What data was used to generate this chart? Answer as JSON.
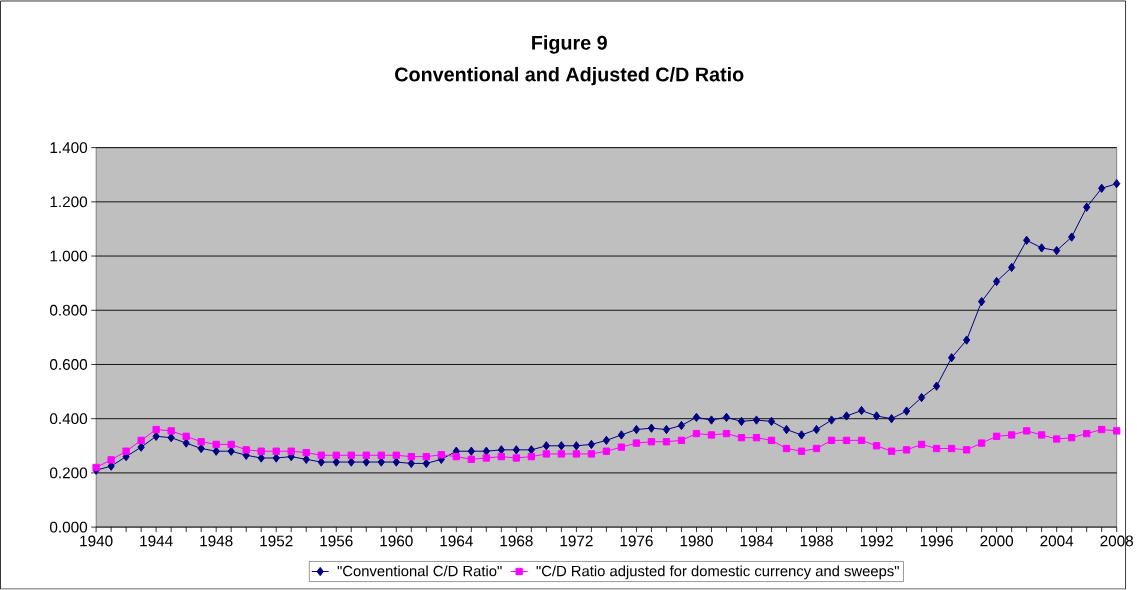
{
  "chart_data": {
    "type": "line",
    "title": "Figure 9",
    "subtitle": "Conventional and Adjusted C/D Ratio",
    "x": [
      1940,
      1941,
      1942,
      1943,
      1944,
      1945,
      1946,
      1947,
      1948,
      1949,
      1950,
      1951,
      1952,
      1953,
      1954,
      1955,
      1956,
      1957,
      1958,
      1959,
      1960,
      1961,
      1962,
      1963,
      1964,
      1965,
      1966,
      1967,
      1968,
      1969,
      1970,
      1971,
      1972,
      1973,
      1974,
      1975,
      1976,
      1977,
      1978,
      1979,
      1980,
      1981,
      1982,
      1983,
      1984,
      1985,
      1986,
      1987,
      1988,
      1989,
      1990,
      1991,
      1992,
      1993,
      1994,
      1995,
      1996,
      1997,
      1998,
      1999,
      2000,
      2001,
      2002,
      2003,
      2004,
      2005,
      2006,
      2007,
      2008
    ],
    "series": [
      {
        "name": "\"Conventional C/D Ratio\"",
        "color": "#000080",
        "marker": "diamond",
        "values": [
          0.21,
          0.225,
          0.26,
          0.295,
          0.335,
          0.33,
          0.31,
          0.29,
          0.28,
          0.28,
          0.265,
          0.255,
          0.255,
          0.26,
          0.25,
          0.24,
          0.24,
          0.24,
          0.24,
          0.24,
          0.24,
          0.235,
          0.235,
          0.25,
          0.28,
          0.28,
          0.28,
          0.285,
          0.285,
          0.285,
          0.3,
          0.3,
          0.3,
          0.305,
          0.32,
          0.34,
          0.36,
          0.365,
          0.36,
          0.375,
          0.405,
          0.395,
          0.405,
          0.39,
          0.395,
          0.39,
          0.36,
          0.34,
          0.36,
          0.395,
          0.41,
          0.43,
          0.41,
          0.4,
          0.428,
          0.478,
          0.52,
          0.625,
          0.69,
          0.832,
          0.906,
          0.958,
          1.058,
          1.03,
          1.02,
          1.07,
          1.18,
          1.25,
          1.267
        ]
      },
      {
        "name": "\"C/D Ratio adjusted for domestic currency and sweeps\"",
        "color": "#ff00ff",
        "marker": "square",
        "values": [
          0.22,
          0.248,
          0.28,
          0.32,
          0.36,
          0.355,
          0.335,
          0.315,
          0.305,
          0.305,
          0.285,
          0.28,
          0.28,
          0.28,
          0.275,
          0.265,
          0.265,
          0.265,
          0.265,
          0.265,
          0.265,
          0.26,
          0.26,
          0.267,
          0.26,
          0.25,
          0.255,
          0.26,
          0.255,
          0.26,
          0.27,
          0.27,
          0.27,
          0.27,
          0.28,
          0.295,
          0.31,
          0.315,
          0.315,
          0.32,
          0.345,
          0.34,
          0.345,
          0.33,
          0.33,
          0.32,
          0.29,
          0.28,
          0.29,
          0.32,
          0.32,
          0.32,
          0.3,
          0.28,
          0.285,
          0.305,
          0.29,
          0.29,
          0.285,
          0.31,
          0.335,
          0.34,
          0.355,
          0.34,
          0.325,
          0.33,
          0.345,
          0.36,
          0.355
        ]
      }
    ],
    "xlim": [
      1940,
      2008
    ],
    "xticks": [
      1940,
      {
        "value": 1941,
        "label": null
      },
      {
        "value": 1942,
        "label": null
      },
      {
        "value": 1943,
        "label": null
      },
      1944,
      {
        "value": 1945,
        "label": null
      },
      {
        "value": 1946,
        "label": null
      },
      {
        "value": 1947,
        "label": null
      },
      1948,
      {
        "value": 1949,
        "label": null
      },
      {
        "value": 1950,
        "label": null
      },
      {
        "value": 1951,
        "label": null
      },
      1952,
      {
        "value": 1953,
        "label": null
      },
      {
        "value": 1954,
        "label": null
      },
      {
        "value": 1955,
        "label": null
      },
      1956,
      {
        "value": 1957,
        "label": null
      },
      {
        "value": 1958,
        "label": null
      },
      {
        "value": 1959,
        "label": null
      },
      1960,
      {
        "value": 1961,
        "label": null
      },
      {
        "value": 1962,
        "label": null
      },
      {
        "value": 1963,
        "label": null
      },
      1964,
      {
        "value": 1965,
        "label": null
      },
      {
        "value": 1966,
        "label": null
      },
      {
        "value": 1967,
        "label": null
      },
      1968,
      {
        "value": 1969,
        "label": null
      },
      {
        "value": 1970,
        "label": null
      },
      {
        "value": 1971,
        "label": null
      },
      1972,
      {
        "value": 1973,
        "label": null
      },
      {
        "value": 1974,
        "label": null
      },
      {
        "value": 1975,
        "label": null
      },
      1976,
      {
        "value": 1977,
        "label": null
      },
      {
        "value": 1978,
        "label": null
      },
      {
        "value": 1979,
        "label": null
      },
      1980,
      {
        "value": 1981,
        "label": null
      },
      {
        "value": 1982,
        "label": null
      },
      {
        "value": 1983,
        "label": null
      },
      1984,
      {
        "value": 1985,
        "label": null
      },
      {
        "value": 1986,
        "label": null
      },
      {
        "value": 1987,
        "label": null
      },
      1988,
      {
        "value": 1989,
        "label": null
      },
      {
        "value": 1990,
        "label": null
      },
      {
        "value": 1991,
        "label": null
      },
      1992,
      {
        "value": 1993,
        "label": null
      },
      {
        "value": 1994,
        "label": null
      },
      {
        "value": 1995,
        "label": null
      },
      1996,
      {
        "value": 1997,
        "label": null
      },
      {
        "value": 1998,
        "label": null
      },
      {
        "value": 1999,
        "label": null
      },
      2000,
      {
        "value": 2001,
        "label": null
      },
      {
        "value": 2002,
        "label": null
      },
      {
        "value": 2003,
        "label": null
      },
      2004,
      {
        "value": 2005,
        "label": null
      },
      {
        "value": 2006,
        "label": null
      },
      {
        "value": 2007,
        "label": null
      },
      2008
    ],
    "ylim": [
      0,
      1.4
    ],
    "yticks": [
      {
        "value": 0,
        "label": "0.000"
      },
      {
        "value": 0.2,
        "label": "0.200"
      },
      {
        "value": 0.4,
        "label": "0.400"
      },
      {
        "value": 0.6,
        "label": "0.600"
      },
      {
        "value": 0.8,
        "label": "0.800"
      },
      {
        "value": 1.0,
        "label": "1.000"
      },
      {
        "value": 1.2,
        "label": "1.200"
      },
      {
        "value": 1.4,
        "label": "1.400"
      }
    ],
    "grid": "y",
    "legend": "bottom",
    "line_style": "solid"
  }
}
